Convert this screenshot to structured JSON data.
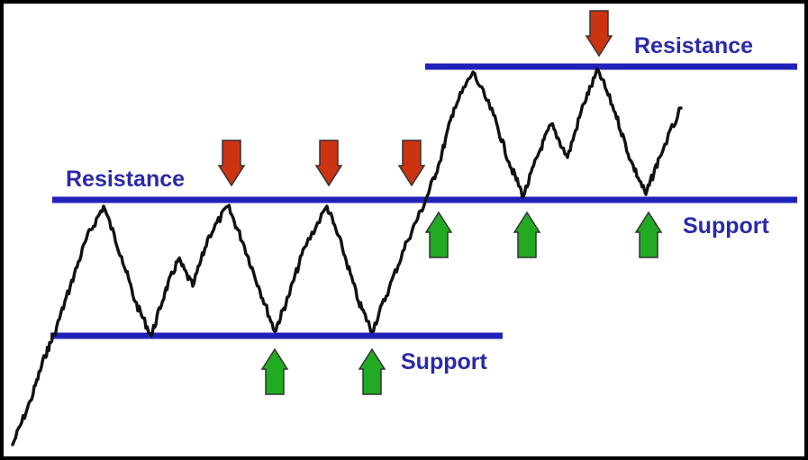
{
  "colors": {
    "background": "#ffffff",
    "frame": "#000000",
    "level_line": "#2222bb",
    "label_text": "#2a2aa8",
    "price_line": "#111111",
    "resistance_arrow": "#cc3311",
    "support_arrow": "#22aa22",
    "arrow_outline": "#333333"
  },
  "labels": {
    "resistance_lower": "Resistance",
    "support_lower": "Support",
    "resistance_upper": "Resistance",
    "support_upper": "Support"
  },
  "arrows": {
    "resistance": "down-arrow-icon",
    "support": "up-arrow-icon"
  }
}
